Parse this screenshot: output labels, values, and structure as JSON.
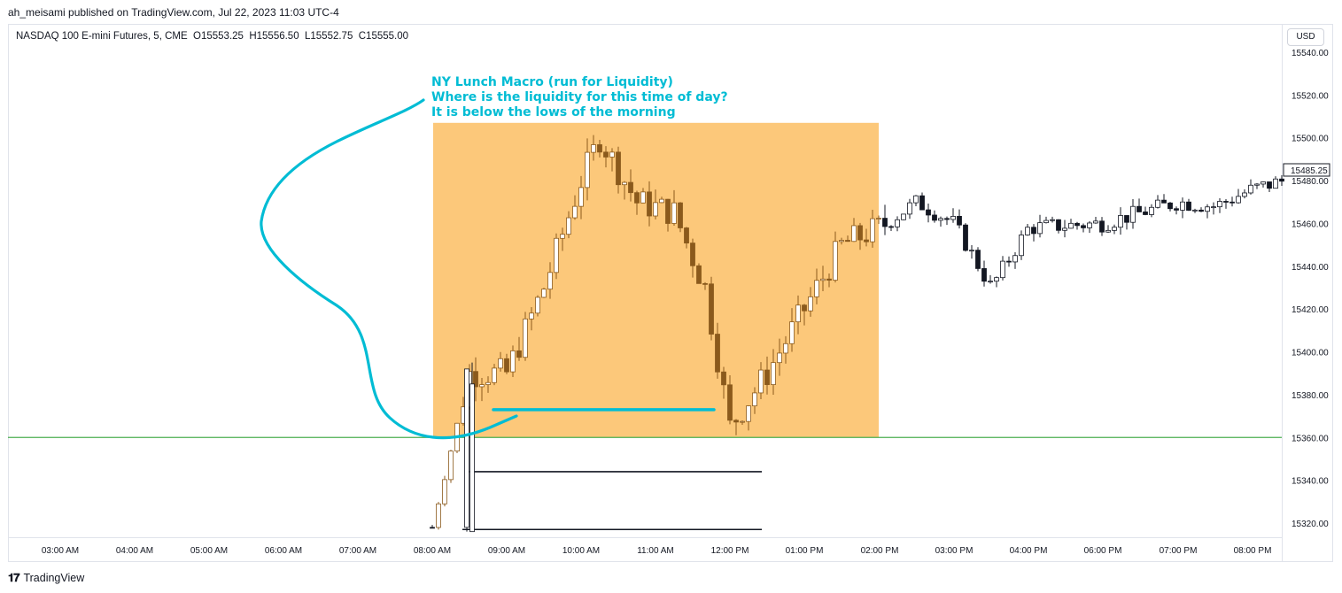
{
  "header": {
    "published_line": "ah_meisami published on TradingView.com, Jul 22, 2023 11:03 UTC-4"
  },
  "legend": {
    "text": "NASDAQ 100 E-mini Futures, 5, CME  O15553.25  H15556.50  L15552.75  C15555.00"
  },
  "currency_button": "USD",
  "footer": {
    "brand": "TradingView",
    "logo_icon": "tradingview-logo-icon"
  },
  "annotation": {
    "lines": [
      "NY Lunch Macro (run for Liquidity)",
      "Where is the liquidity for this time of day?",
      "It is below the lows of the morning"
    ],
    "color": "#00bcd4"
  },
  "colors": {
    "zone_fill": "#fcc87a",
    "level_line": "#4caf50",
    "candle_up": "#ffffff",
    "candle_down": "#131722",
    "candle_in_zone": "#8b5a1c",
    "annotation": "#00bcd4"
  },
  "chart_data": {
    "type": "candlestick",
    "x_tick_labels": [
      "03:00 AM",
      "04:00 AM",
      "05:00 AM",
      "06:00 AM",
      "07:00 AM",
      "08:00 AM",
      "09:00 AM",
      "10:00 AM",
      "11:00 AM",
      "12:00 PM",
      "01:00 PM",
      "02:00 PM",
      "03:00 PM",
      "04:00 PM",
      "06:00 PM",
      "07:00 PM",
      "08:00 PM"
    ],
    "y_tick_values": [
      15320.0,
      15340.0,
      15360.0,
      15380.0,
      15400.0,
      15420.0,
      15440.0,
      15460.0,
      15480.0,
      15500.0,
      15520.0,
      15540.0
    ],
    "y_range": [
      15314,
      15548
    ],
    "last_price": "15485.25",
    "levels": {
      "green_line": 15360,
      "liquidity_line": 15373,
      "black_line_1": 15344,
      "black_line_2": 15317
    },
    "zone": {
      "from": "08:24 AM",
      "to": "02:00 PM",
      "high": 15507,
      "low": 15360
    },
    "approx_path": [
      {
        "t": "08:00 AM",
        "price": 15318
      },
      {
        "t": "08:30 AM",
        "price": 15390
      },
      {
        "t": "09:00 AM",
        "price": 15390
      },
      {
        "t": "09:30 AM",
        "price": 15430
      },
      {
        "t": "10:00 AM",
        "price": 15480
      },
      {
        "t": "10:15 AM",
        "price": 15500
      },
      {
        "t": "10:45 AM",
        "price": 15470
      },
      {
        "t": "11:15 AM",
        "price": 15465
      },
      {
        "t": "11:40 AM",
        "price": 15430
      },
      {
        "t": "12:00 PM",
        "price": 15365
      },
      {
        "t": "12:30 PM",
        "price": 15390
      },
      {
        "t": "01:00 PM",
        "price": 15420
      },
      {
        "t": "01:30 PM",
        "price": 15450
      },
      {
        "t": "02:00 PM",
        "price": 15458
      },
      {
        "t": "02:30 PM",
        "price": 15470
      },
      {
        "t": "03:00 PM",
        "price": 15460
      },
      {
        "t": "03:30 PM",
        "price": 15430
      },
      {
        "t": "04:00 PM",
        "price": 15458
      },
      {
        "t": "06:00 PM",
        "price": 15460
      },
      {
        "t": "07:00 PM",
        "price": 15470
      },
      {
        "t": "07:30 PM",
        "price": 15468
      },
      {
        "t": "08:00 PM",
        "price": 15476
      },
      {
        "t": "08:25 PM",
        "price": 15480
      }
    ]
  }
}
